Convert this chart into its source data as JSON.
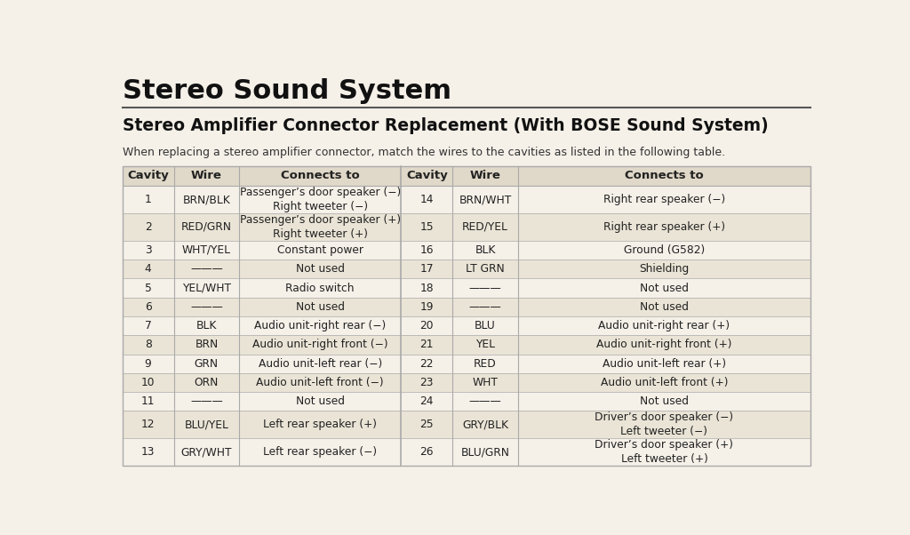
{
  "main_title": "Stereo Sound System",
  "subtitle": "Stereo Amplifier Connector Replacement (With BOSE Sound System)",
  "description": "When replacing a stereo amplifier connector, match the wires to the cavities as listed in the following table.",
  "headers": [
    "Cavity",
    "Wire",
    "Connects to",
    "Cavity",
    "Wire",
    "Connects to"
  ],
  "rows": [
    [
      "1",
      "BRN/BLK",
      "Passenger’s door speaker (−)\nRight tweeter (−)",
      "14",
      "BRN/WHT",
      "Right rear speaker (−)"
    ],
    [
      "2",
      "RED/GRN",
      "Passenger’s door speaker (+)\nRight tweeter (+)",
      "15",
      "RED/YEL",
      "Right rear speaker (+)"
    ],
    [
      "3",
      "WHT/YEL",
      "Constant power",
      "16",
      "BLK",
      "Ground (G582)"
    ],
    [
      "4",
      "———",
      "Not used",
      "17",
      "LT GRN",
      "Shielding"
    ],
    [
      "5",
      "YEL/WHT",
      "Radio switch",
      "18",
      "———",
      "Not used"
    ],
    [
      "6",
      "———",
      "Not used",
      "19",
      "———",
      "Not used"
    ],
    [
      "7",
      "BLK",
      "Audio unit-right rear (−)",
      "20",
      "BLU",
      "Audio unit-right rear (+)"
    ],
    [
      "8",
      "BRN",
      "Audio unit-right front (−)",
      "21",
      "YEL",
      "Audio unit-right front (+)"
    ],
    [
      "9",
      "GRN",
      "Audio unit-left rear (−)",
      "22",
      "RED",
      "Audio unit-left rear (+)"
    ],
    [
      "10",
      "ORN",
      "Audio unit-left front (−)",
      "23",
      "WHT",
      "Audio unit-left front (+)"
    ],
    [
      "11",
      "———",
      "Not used",
      "24",
      "———",
      "Not used"
    ],
    [
      "12",
      "BLU/YEL",
      "Left rear speaker (+)",
      "25",
      "GRY/BLK",
      "Driver’s door speaker (−)\nLeft tweeter (−)"
    ],
    [
      "13",
      "GRY/WHT",
      "Left rear speaker (−)",
      "26",
      "BLU/GRN",
      "Driver’s door speaker (+)\nLeft tweeter (+)"
    ]
  ],
  "bg_color": "#f5f0e8",
  "header_bg": "#e0d8c8",
  "row_alt_bg": "#eae4d6",
  "row_bg": "#f5f0e8",
  "border_color": "#aaaaaa",
  "text_color": "#222222",
  "title_color": "#111111",
  "subtitle_color": "#111111",
  "desc_color": "#333333",
  "rule_color": "#555555"
}
